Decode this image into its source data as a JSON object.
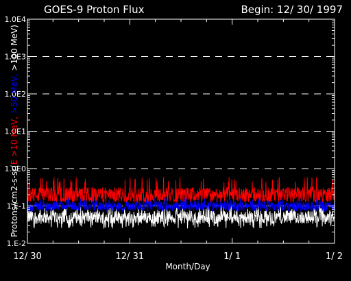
{
  "chart_data": {
    "type": "line",
    "title": "GOES-9 Proton Flux",
    "subtitle": "Begin: 12/ 30/ 1997",
    "xlabel": "Month/Day",
    "ylabel_parts": [
      {
        "text": "Protons/cm2-s-sr(",
        "color": "#ffffff"
      },
      {
        "text": "E >10 MeV, ",
        "color": "#ff0000"
      },
      {
        "text": ">50 MeV, ",
        "color": "#0000ff"
      },
      {
        "text": ">100 MeV)",
        "color": "#ffffff"
      }
    ],
    "y_scale": "log",
    "ylim": [
      0.01,
      10000
    ],
    "y_ticks": [
      {
        "value": 10000,
        "label": "1.0E4"
      },
      {
        "value": 1000,
        "label": "1.0E3"
      },
      {
        "value": 100,
        "label": "1.0E2"
      },
      {
        "value": 10,
        "label": "1.0E1"
      },
      {
        "value": 1,
        "label": "1.0E0"
      },
      {
        "value": 0.1,
        "label": "1.E-1"
      },
      {
        "value": 0.01,
        "label": "1.E-2"
      }
    ],
    "grid_y": [
      1000,
      100,
      10,
      1,
      0.1
    ],
    "x_range_days": [
      0,
      3
    ],
    "x_ticks": [
      {
        "day": 0,
        "label": "12/ 30"
      },
      {
        "day": 1,
        "label": "12/ 31"
      },
      {
        "day": 2,
        "label": "1/ 1"
      },
      {
        "day": 3,
        "label": "1/ 2"
      }
    ],
    "series": [
      {
        "name": ">10 MeV",
        "color": "#ff0000",
        "approx_level": 0.2,
        "range": [
          0.13,
          0.6
        ]
      },
      {
        "name": ">50 MeV",
        "color": "#0000ff",
        "approx_level": 0.1,
        "range": [
          0.07,
          0.17
        ]
      },
      {
        "name": ">100 MeV",
        "color": "#ffffff",
        "approx_level": 0.05,
        "range": [
          0.025,
          0.1
        ]
      }
    ]
  }
}
